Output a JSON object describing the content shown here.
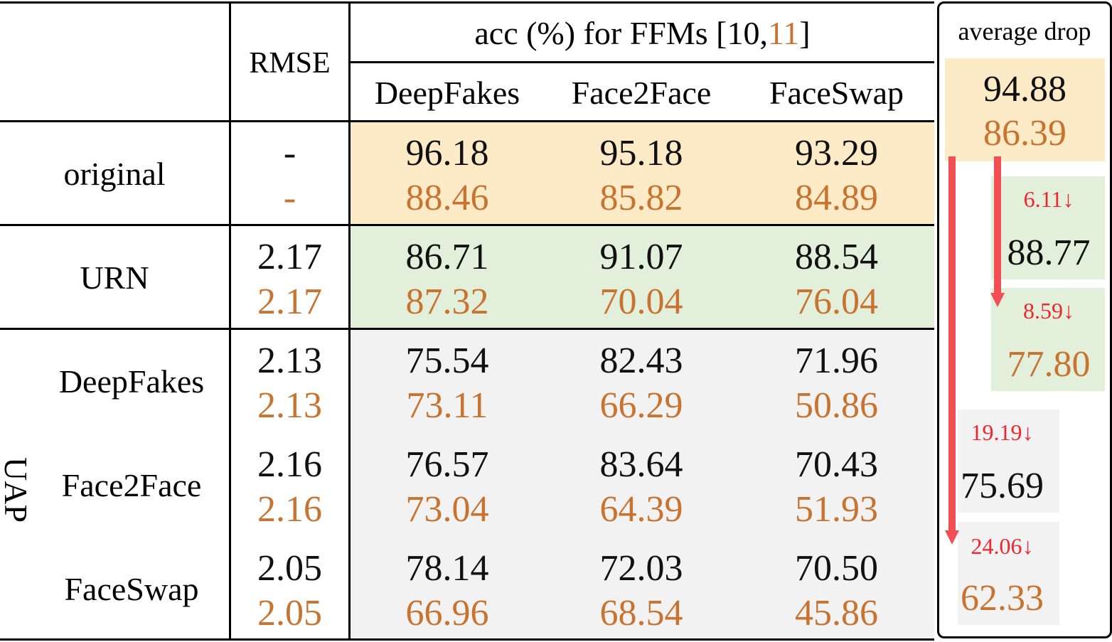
{
  "header": {
    "rmse_label": "RMSE",
    "acc_prefix": "acc (%)  for FFMs [10,",
    "acc_ref2": "11",
    "acc_suffix": "]",
    "columns": [
      "DeepFakes",
      "Face2Face",
      "FaceSwap"
    ],
    "avg_label": "average drop"
  },
  "rows": [
    {
      "label": "original",
      "rmse": [
        "-",
        "-"
      ],
      "acc": [
        [
          "96.18",
          "88.46"
        ],
        [
          "95.18",
          "85.82"
        ],
        [
          "93.29",
          "84.89"
        ]
      ]
    },
    {
      "label": "URN",
      "rmse": [
        "2.17",
        "2.17"
      ],
      "acc": [
        [
          "86.71",
          "87.32"
        ],
        [
          "91.07",
          "70.04"
        ],
        [
          "88.54",
          "76.04"
        ]
      ]
    },
    {
      "label": "DeepFakes",
      "rmse": [
        "2.13",
        "2.13"
      ],
      "acc": [
        [
          "75.54",
          "73.11"
        ],
        [
          "82.43",
          "66.29"
        ],
        [
          "71.96",
          "50.86"
        ]
      ]
    },
    {
      "label": "Face2Face",
      "rmse": [
        "2.16",
        "2.16"
      ],
      "acc": [
        [
          "76.57",
          "73.04"
        ],
        [
          "83.64",
          "64.39"
        ],
        [
          "70.43",
          "51.93"
        ]
      ]
    },
    {
      "label": "FaceSwap",
      "rmse": [
        "2.05",
        "2.05"
      ],
      "acc": [
        [
          "78.14",
          "66.96"
        ],
        [
          "72.03",
          "68.54"
        ],
        [
          "70.50",
          "45.86"
        ]
      ]
    }
  ],
  "uap_label": "UAP",
  "average": {
    "original": [
      "94.88",
      "86.39"
    ],
    "urn": {
      "drop1": "6.11↓",
      "val1": "88.77",
      "drop2": "8.59↓",
      "val2": "77.80"
    },
    "uap": {
      "drop1": "19.19↓",
      "val1": "75.69",
      "drop2": "24.06↓",
      "val2": "62.33"
    }
  },
  "colors": {
    "original_bg": "#fdebc8",
    "urn_bg": "#e2efda",
    "uap_bg": "#f2f2f2",
    "orange_text": "#c8732f",
    "red_text": "#f0262f",
    "arrow": "#f24f55"
  }
}
